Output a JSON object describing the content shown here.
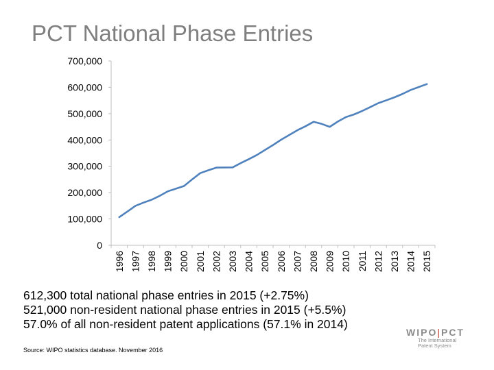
{
  "slide": {
    "title": "PCT National Phase Entries",
    "stats": [
      "612,300 total national phase entries in 2015 (+2.75%)",
      "521,000 non-resident national phase entries in 2015 (+5.5%)",
      "57.0% of all non-resident patent applications (57.1% in 2014)"
    ],
    "source": "Source: WIPO statistics database.  November 2016",
    "logo": {
      "left": "WIPO",
      "separator": "|",
      "right": "PCT",
      "sub_line1": "The International",
      "sub_line2": "Patent System"
    }
  },
  "colors": {
    "title": "#7f7f7f",
    "line": "#4f81bd",
    "axis": "#bfbfbf",
    "logo_accent": "#c0392b"
  },
  "chart_data": {
    "type": "line",
    "title": "",
    "xlabel": "",
    "ylabel": "",
    "categories": [
      "1996",
      "1997",
      "1998",
      "1999",
      "2000",
      "2001",
      "2002",
      "2003",
      "2004",
      "2005",
      "2006",
      "2007",
      "2008",
      "2009",
      "2010",
      "2011",
      "2012",
      "2013",
      "2014",
      "2015"
    ],
    "y_ticks": [
      "0",
      "100,000",
      "200,000",
      "300,000",
      "400,000",
      "500,000",
      "600,000",
      "700,000"
    ],
    "ylim": [
      0,
      700000
    ],
    "grid": false,
    "series": [
      {
        "name": "National phase entries",
        "x": [
          1996,
          1996.5,
          1997,
          1997.5,
          1998,
          1998.5,
          1999,
          1999.5,
          2000,
          2000.5,
          2001,
          2001.5,
          2002,
          2002.5,
          2003,
          2003.5,
          2004,
          2004.5,
          2005,
          2005.5,
          2006,
          2006.5,
          2007,
          2007.5,
          2008,
          2008.5,
          2009,
          2009.5,
          2010,
          2010.5,
          2011,
          2011.5,
          2012,
          2012.5,
          2013,
          2013.5,
          2014,
          2014.5,
          2015
        ],
        "values": [
          107000,
          128000,
          150000,
          162000,
          173000,
          188000,
          205000,
          215000,
          225000,
          250000,
          274000,
          285000,
          295000,
          295500,
          296000,
          312000,
          327000,
          343000,
          362000,
          381000,
          401000,
          419000,
          437000,
          452000,
          469000,
          461000,
          450000,
          470000,
          487000,
          497000,
          510000,
          525000,
          540000,
          551000,
          562000,
          575000,
          590000,
          601000,
          612300
        ]
      }
    ]
  }
}
